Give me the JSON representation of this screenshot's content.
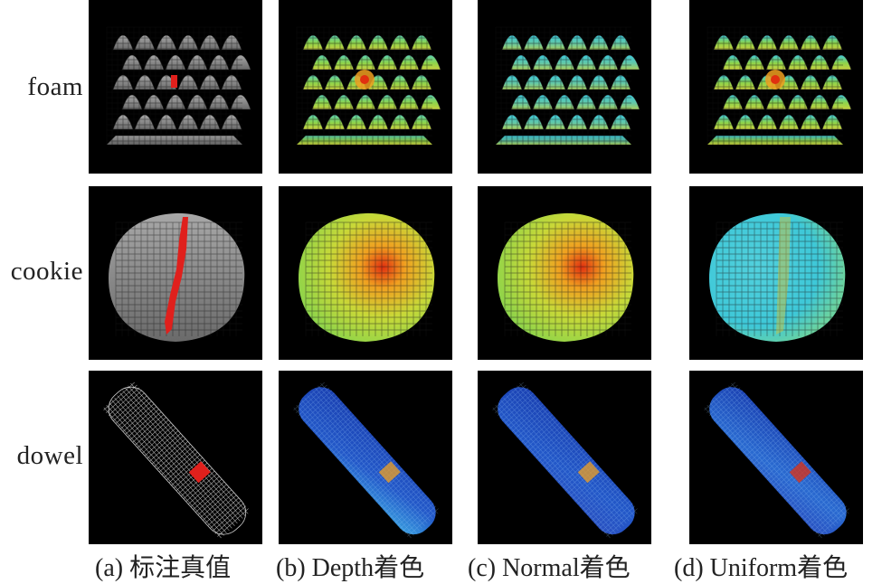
{
  "rows": [
    {
      "label": "foam"
    },
    {
      "label": "cookie"
    },
    {
      "label": "dowel"
    }
  ],
  "columns": [
    {
      "caption": "(a) 标注真值",
      "style": "gray"
    },
    {
      "caption": "(b) Depth着色",
      "style": "depth"
    },
    {
      "caption": "(c) Normal着色",
      "style": "normal"
    },
    {
      "caption": "(d) Uniform着色",
      "style": "uniform"
    }
  ],
  "colors": {
    "background": "#000000",
    "defect": "#e0201c",
    "gray": "#8c8c8c",
    "low": "#3ec8d8",
    "mid": "#8ed44a",
    "high": "#f0a020",
    "peak": "#e03010",
    "blue": "#1a3fb0"
  }
}
